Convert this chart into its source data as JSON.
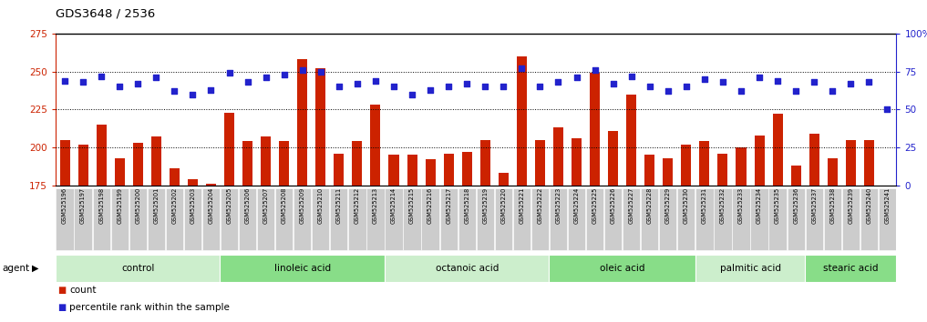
{
  "title": "GDS3648 / 2536",
  "samples": [
    "GSM525196",
    "GSM525197",
    "GSM525198",
    "GSM525199",
    "GSM525200",
    "GSM525201",
    "GSM525202",
    "GSM525203",
    "GSM525204",
    "GSM525205",
    "GSM525206",
    "GSM525207",
    "GSM525208",
    "GSM525209",
    "GSM525210",
    "GSM525211",
    "GSM525212",
    "GSM525213",
    "GSM525214",
    "GSM525215",
    "GSM525216",
    "GSM525217",
    "GSM525218",
    "GSM525219",
    "GSM525220",
    "GSM525221",
    "GSM525222",
    "GSM525223",
    "GSM525224",
    "GSM525225",
    "GSM525226",
    "GSM525227",
    "GSM525228",
    "GSM525229",
    "GSM525230",
    "GSM525231",
    "GSM525232",
    "GSM525233",
    "GSM525234",
    "GSM525235",
    "GSM525236",
    "GSM525237",
    "GSM525238",
    "GSM525239",
    "GSM525240",
    "GSM525241"
  ],
  "counts": [
    205,
    202,
    215,
    193,
    203,
    207,
    186,
    179,
    176,
    223,
    204,
    207,
    204,
    258,
    252,
    196,
    204,
    228,
    195,
    195,
    192,
    196,
    197,
    205,
    183,
    260,
    205,
    213,
    206,
    249,
    211,
    235,
    195,
    193,
    202,
    204,
    196,
    200,
    208,
    222,
    188,
    209,
    193,
    205,
    205,
    175
  ],
  "percentiles": [
    69,
    68,
    72,
    65,
    67,
    71,
    62,
    60,
    63,
    74,
    68,
    71,
    73,
    76,
    75,
    65,
    67,
    69,
    65,
    60,
    63,
    65,
    67,
    65,
    65,
    77,
    65,
    68,
    71,
    76,
    67,
    72,
    65,
    62,
    65,
    70,
    68,
    62,
    71,
    69,
    62,
    68,
    62,
    67,
    68,
    50
  ],
  "groups": [
    {
      "label": "control",
      "start": 0,
      "end": 9
    },
    {
      "label": "linoleic acid",
      "start": 9,
      "end": 18
    },
    {
      "label": "octanoic acid",
      "start": 18,
      "end": 27
    },
    {
      "label": "oleic acid",
      "start": 27,
      "end": 35
    },
    {
      "label": "palmitic acid",
      "start": 35,
      "end": 41
    },
    {
      "label": "stearic acid",
      "start": 41,
      "end": 46
    }
  ],
  "ymin": 175,
  "ymax": 275,
  "yticks_left": [
    175,
    200,
    225,
    250,
    275
  ],
  "yticks_right": [
    0,
    25,
    50,
    75,
    100
  ],
  "bar_color": "#cc2200",
  "dot_color": "#2222cc",
  "tick_bg": "#cccccc",
  "plot_bg": "#ffffff",
  "group_color_even": "#cceecc",
  "group_color_odd": "#88dd88",
  "agent_label": "agent"
}
